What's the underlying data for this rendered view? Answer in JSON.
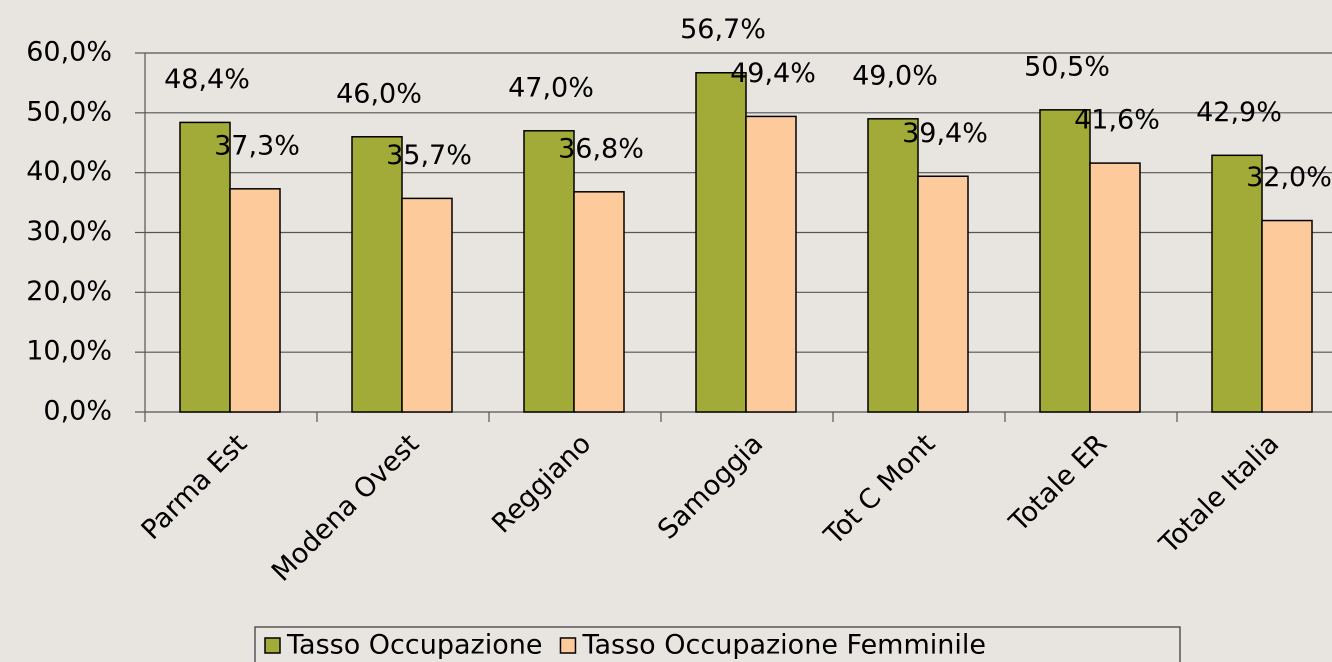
{
  "chart_data": {
    "type": "bar",
    "categories": [
      "Parma Est",
      "Modena Ovest",
      "Reggiano",
      "Samoggia",
      "Tot C Mont",
      "Totale ER",
      "Totale Italia"
    ],
    "series": [
      {
        "name": "Tasso Occupazione",
        "color": "#a2ab37",
        "values": [
          48.4,
          46.0,
          47.0,
          56.7,
          49.0,
          50.5,
          42.9
        ],
        "value_labels": [
          "48,4%",
          "46,0%",
          "47,0%",
          "56,7%",
          "49,0%",
          "50,5%",
          "42,9%"
        ]
      },
      {
        "name": "Tasso Occupazione Femminile",
        "color": "#fdcb9b",
        "values": [
          37.3,
          35.7,
          36.8,
          49.4,
          39.4,
          41.6,
          32.0
        ],
        "value_labels": [
          "37,3%",
          "35,7%",
          "36,8%",
          "49,4%",
          "39,4%",
          "41,6%",
          "32,0%"
        ]
      }
    ],
    "ylim": [
      0,
      60
    ],
    "yticks": [
      {
        "value": 0,
        "label": "0,0%"
      },
      {
        "value": 10,
        "label": "10,0%"
      },
      {
        "value": 20,
        "label": "20,0%"
      },
      {
        "value": 30,
        "label": "30,0%"
      },
      {
        "value": 40,
        "label": "40,0%"
      },
      {
        "value": 50,
        "label": "50,0%"
      },
      {
        "value": 60,
        "label": "60,0%"
      }
    ],
    "grid": true,
    "legend": "bottom"
  }
}
